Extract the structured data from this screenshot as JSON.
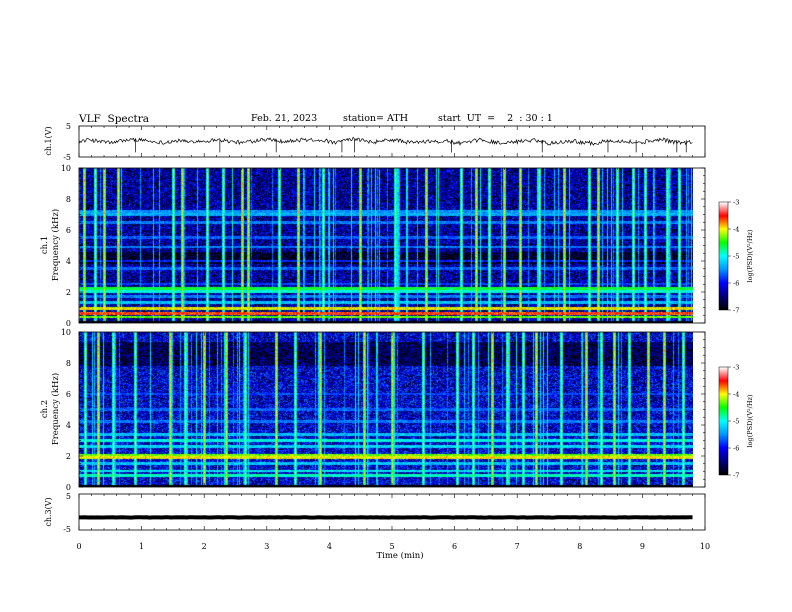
{
  "header": {
    "title": "VLF  Spectra",
    "date": "Feb. 21, 2023",
    "station": "station= ATH",
    "start": "start  UT  =    2  : 30 : 1"
  },
  "chart_data": [
    {
      "type": "line",
      "ylabel": "ch.1(V)",
      "ylim": [
        -5,
        5
      ],
      "yticks": [
        "5",
        "-5"
      ],
      "x_range_min": [
        0,
        9.8
      ],
      "mean_level": 0,
      "noise_amplitude": 1.2,
      "spike_times_min": [
        0.9,
        2.25,
        3.15,
        4.2,
        4.4,
        5.95,
        7.4,
        8.45,
        8.9,
        9.55,
        9.7
      ]
    },
    {
      "type": "heatmap",
      "title": "ch.1",
      "ylabel": "Frequency  (kHz)",
      "ylim": [
        0,
        10
      ],
      "yticks": [
        "0",
        "2",
        "4",
        "6",
        "8",
        "10"
      ],
      "x_range_min": [
        0,
        9.8
      ],
      "colorbar": {
        "label": "log(PSD)(V²/Hz)",
        "range": [
          -7,
          -3
        ],
        "ticks": [
          "-3",
          "-4",
          "-5",
          "-6",
          "-7"
        ]
      },
      "background_level": -6.4,
      "bands": [
        {
          "f_khz": 0.05,
          "level": -6.9
        },
        {
          "f_khz": 0.35,
          "level": -4.3
        },
        {
          "f_khz": 0.6,
          "level": -3.6
        },
        {
          "f_khz": 0.9,
          "level": -4.0
        },
        {
          "f_khz": 1.3,
          "level": -5.3
        },
        {
          "f_khz": 1.7,
          "level": -5.6
        },
        {
          "f_khz": 2.0,
          "level": -5.0
        },
        {
          "f_khz": 2.2,
          "level": -4.6
        },
        {
          "f_khz": 2.5,
          "level": -5.8
        },
        {
          "f_khz": 3.5,
          "level": -5.7
        },
        {
          "f_khz": 4.0,
          "level": -5.9
        },
        {
          "f_khz": 4.9,
          "level": -5.6
        },
        {
          "f_khz": 5.5,
          "level": -5.7
        },
        {
          "f_khz": 6.5,
          "level": -5.6
        },
        {
          "f_khz": 7.0,
          "level": -5.4
        },
        {
          "f_khz": 7.2,
          "level": -5.5
        }
      ],
      "dark_band_khz": [
        3.8,
        4.6
      ],
      "sferic_times_min": [
        0.08,
        0.25,
        0.4,
        0.62,
        1.5,
        1.65,
        2.05,
        2.3,
        2.6,
        2.7,
        3.2,
        3.5,
        3.9,
        4.5,
        5.05,
        5.55,
        6.1,
        6.35,
        6.55,
        6.8,
        7.05,
        7.35,
        7.75,
        8.15,
        8.3,
        8.6,
        8.85,
        9.05,
        9.4,
        9.6
      ]
    },
    {
      "type": "heatmap",
      "title": "ch.2",
      "ylabel": "Frequency  (kHz)",
      "ylim": [
        0,
        10
      ],
      "yticks": [
        "0",
        "2",
        "4",
        "6",
        "8",
        "10"
      ],
      "x_range_min": [
        0,
        9.8
      ],
      "colorbar": {
        "label": "log(PSD)(V²/Hz)",
        "range": [
          -7,
          -3
        ],
        "ticks": [
          "-3",
          "-4",
          "-5",
          "-6",
          "-7"
        ]
      },
      "background_level": -6.2,
      "bands": [
        {
          "f_khz": 0.1,
          "level": -6.9
        },
        {
          "f_khz": 0.7,
          "level": -4.9
        },
        {
          "f_khz": 1.0,
          "level": -5.1
        },
        {
          "f_khz": 1.5,
          "level": -5.3
        },
        {
          "f_khz": 1.9,
          "level": -4.0
        },
        {
          "f_khz": 2.05,
          "level": -4.3
        },
        {
          "f_khz": 2.6,
          "level": -5.2
        },
        {
          "f_khz": 3.0,
          "level": -5.0
        },
        {
          "f_khz": 3.4,
          "level": -5.3
        },
        {
          "f_khz": 4.2,
          "level": -5.6
        },
        {
          "f_khz": 5.0,
          "level": -5.7
        },
        {
          "f_khz": 6.0,
          "level": -5.8
        }
      ],
      "dark_band_khz": [
        7.8,
        9.4
      ],
      "sferic_times_min": [
        0.1,
        0.3,
        0.55,
        0.9,
        1.45,
        1.7,
        2.0,
        2.35,
        2.65,
        3.15,
        3.45,
        3.85,
        4.55,
        5.0,
        5.5,
        6.05,
        6.3,
        6.6,
        6.85,
        7.1,
        7.3,
        7.7,
        8.1,
        8.35,
        8.55,
        8.8,
        9.1,
        9.35,
        9.65
      ]
    },
    {
      "type": "line",
      "ylabel": "ch.3(V)",
      "ylim": [
        -5,
        5
      ],
      "yticks": [
        "5",
        "-5"
      ],
      "x_range_min": [
        0,
        9.8
      ],
      "mean_level": -1.5,
      "noise_amplitude": 0.1,
      "xlabel": "Time  (min)",
      "xlim": [
        0,
        10
      ],
      "xticks": [
        "0",
        "1",
        "2",
        "3",
        "4",
        "5",
        "6",
        "7",
        "8",
        "9",
        "10"
      ]
    }
  ],
  "colors": {
    "axis": "#000000",
    "trace": "#000000",
    "colormap": [
      "#000000",
      "#00007a",
      "#0000ff",
      "#0096ff",
      "#00ffff",
      "#00ff00",
      "#ffff00",
      "#ff0000",
      "#ffffff"
    ]
  }
}
